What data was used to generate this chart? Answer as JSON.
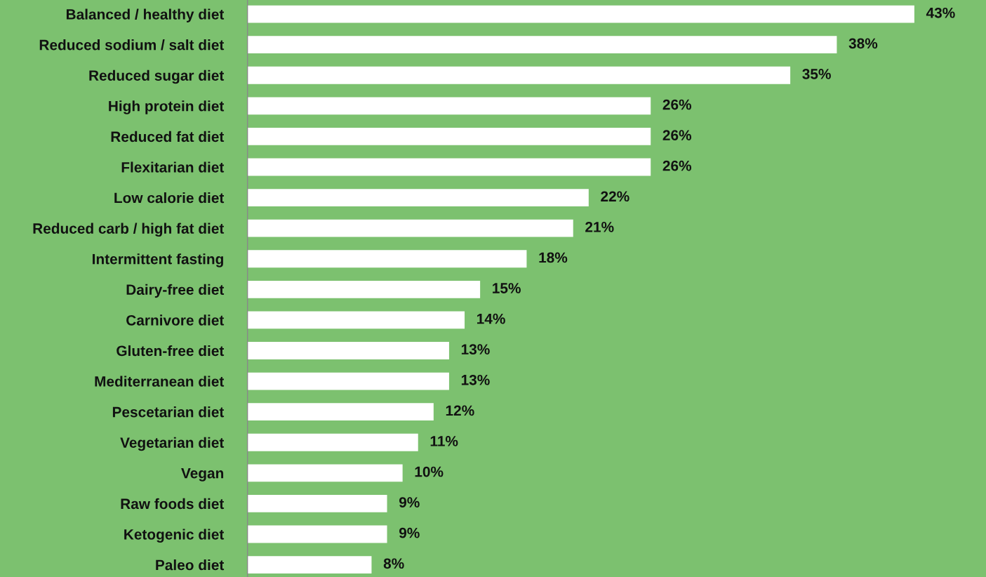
{
  "chart_data": {
    "type": "bar",
    "orientation": "horizontal",
    "categories": [
      "Balanced / healthy diet",
      "Reduced sodium / salt diet",
      "Reduced sugar diet",
      "High protein diet",
      "Reduced fat diet",
      "Flexitarian diet",
      "Low calorie diet",
      "Reduced carb / high fat diet",
      "Intermittent fasting",
      "Dairy-free diet",
      "Carnivore diet",
      "Gluten-free diet",
      "Mediterranean diet",
      "Pescetarian diet",
      "Vegetarian diet",
      "Vegan",
      "Raw foods diet",
      "Ketogenic diet",
      "Paleo diet"
    ],
    "values": [
      43,
      38,
      35,
      26,
      26,
      26,
      22,
      21,
      18,
      15,
      14,
      13,
      13,
      12,
      11,
      10,
      9,
      9,
      8
    ],
    "value_labels": [
      "43%",
      "38%",
      "35%",
      "26%",
      "26%",
      "26%",
      "22%",
      "21%",
      "18%",
      "15%",
      "14%",
      "13%",
      "13%",
      "12%",
      "11%",
      "10%",
      "9%",
      "9%",
      "8%"
    ],
    "color": "#ffffff",
    "grid": false,
    "legend": false
  }
}
